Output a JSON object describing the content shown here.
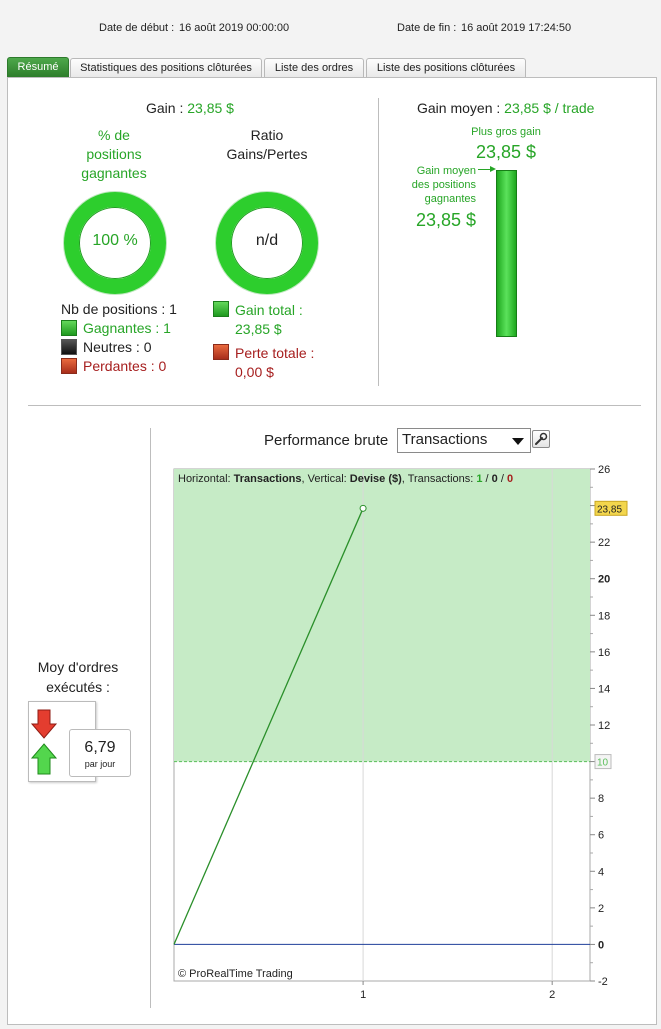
{
  "header": {
    "start_label": "Date de début :",
    "start_value": "16 août 2019 00:00:00",
    "end_label": "Date de fin :",
    "end_value": "16 août 2019 17:24:50"
  },
  "tabs": [
    {
      "label": "Résumé",
      "active": true
    },
    {
      "label": "Statistiques des positions clôturées",
      "active": false
    },
    {
      "label": "Liste des ordres",
      "active": false
    },
    {
      "label": "Liste des positions clôturées",
      "active": false
    }
  ],
  "summary": {
    "gain_label": "Gain :",
    "gain_value": "23,85 $",
    "pct_title": [
      "% de",
      "positions",
      "gagnantes"
    ],
    "pct_value": "100 %",
    "ratio_title": [
      "Ratio",
      "Gains/Pertes"
    ],
    "ratio_value": "n/d",
    "nb_positions": "Nb de positions : 1",
    "winners": "Gagnantes : 1",
    "neutral": "Neutres : 0",
    "losers": "Perdantes : 0",
    "total_gain_label": "Gain total :",
    "total_gain_value": "23,85 $",
    "total_loss_label": "Perte totale :",
    "total_loss_value": "0,00 $",
    "avg_gain_label": "Gain moyen :",
    "avg_gain_value": "23,85 $ / trade",
    "biggest_gain_label": "Plus gros gain",
    "biggest_gain_value": "23,85 $",
    "avg_win_label": [
      "Gain moyen",
      "des positions",
      "gagnantes"
    ],
    "avg_win_value": "23,85 $"
  },
  "orders": {
    "title": [
      "Moy d'ordres",
      "exécutés :"
    ],
    "value": "6,79",
    "unit": "par jour"
  },
  "performance": {
    "title": "Performance brute",
    "select_value": "Transactions",
    "legend_parts": [
      "Horizontal: ",
      "Transactions",
      ", Vertical: ",
      "Devise ($)",
      ", Transactions: ",
      "1",
      " / ",
      "0",
      " / ",
      "0"
    ],
    "copyright": "© ProRealTime Trading",
    "current_label": "23,85",
    "threshold_label": "10"
  },
  "chart_data": {
    "type": "line",
    "x": [
      0,
      1
    ],
    "y": [
      0,
      23.85
    ],
    "xlim": [
      0,
      2.2
    ],
    "ylim": [
      -2,
      26
    ],
    "yticks": [
      -2,
      0,
      2,
      4,
      6,
      8,
      10,
      12,
      14,
      16,
      18,
      20,
      22,
      24,
      26
    ],
    "ytick_labels": [
      "-2",
      "0",
      "2",
      "4",
      "6",
      "8",
      "",
      "12",
      "14",
      "16",
      "18",
      "20",
      "22",
      "",
      "26"
    ],
    "xticks": [
      1,
      2
    ],
    "xtick_labels": [
      "1",
      "2"
    ],
    "threshold": 10,
    "baseline": 0,
    "colors": {
      "line": "#2a8f2a",
      "fill": "#c6ebc6",
      "baseline": "#1f3f9a"
    }
  },
  "colors": {
    "accent": "#2dce2d",
    "loss": "#a61e1e",
    "gain_text": "#27a527"
  }
}
